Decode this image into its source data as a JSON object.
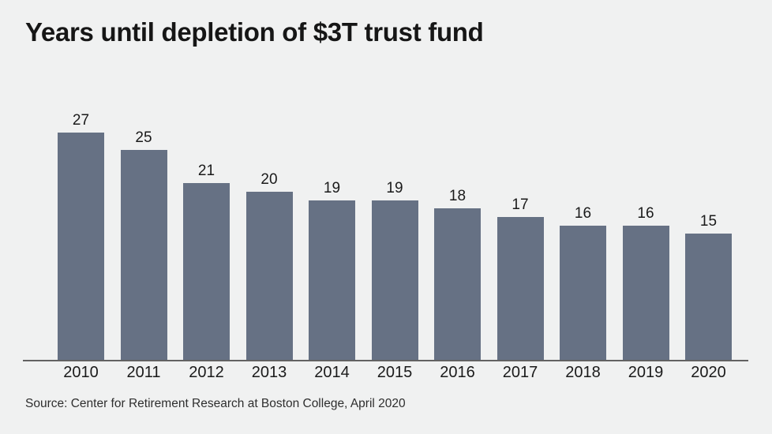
{
  "title": "Years until depletion of $3T trust fund",
  "source": "Source: Center for Retirement Research at Boston College, April 2020",
  "colors": {
    "background": "#f0f1f1",
    "bar": "#66718449",
    "bar_fill": "#667184",
    "axis": "#626262",
    "text": "#1a1a1a"
  },
  "chart_data": {
    "type": "bar",
    "categories": [
      "2010",
      "2011",
      "2012",
      "2013",
      "2014",
      "2015",
      "2016",
      "2017",
      "2018",
      "2019",
      "2020"
    ],
    "values": [
      27,
      25,
      21,
      20,
      19,
      19,
      18,
      17,
      16,
      16,
      15
    ],
    "title": "Years until depletion of $3T trust fund",
    "xlabel": "",
    "ylabel": "",
    "ylim": [
      0,
      30
    ],
    "grid": false,
    "legend": false,
    "data_labels": true,
    "bar_color": "#667184"
  }
}
